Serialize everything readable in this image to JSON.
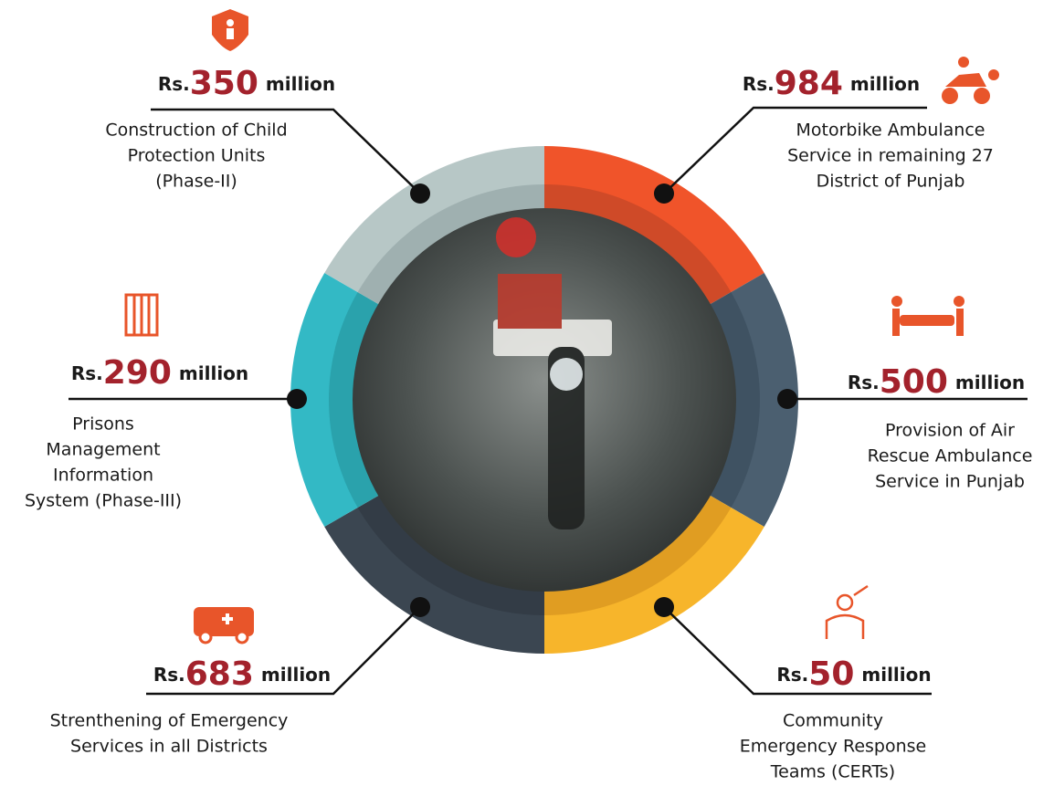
{
  "items": [
    {
      "prefix": "Rs.",
      "amount": 350,
      "unit": "million",
      "description": [
        "Construction of Child",
        "Protection Units",
        "(Phase-II)"
      ]
    },
    {
      "prefix": "Rs.",
      "amount": 984,
      "unit": "million",
      "description": [
        "Motorbike Ambulance",
        "Service in remaining 27",
        "District of Punjab"
      ]
    },
    {
      "prefix": "Rs.",
      "amount": 500,
      "unit": "million",
      "description": [
        "Provision of Air",
        "Rescue Ambulance",
        "Service in Punjab"
      ]
    },
    {
      "prefix": "Rs.",
      "amount": 50,
      "unit": "million",
      "description": [
        "Community",
        "Emergency Response",
        "Teams (CERTs)"
      ]
    },
    {
      "prefix": "Rs.",
      "amount": 683,
      "unit": "million",
      "description": [
        "Strenthening of Emergency",
        "Services in all Districts"
      ]
    },
    {
      "prefix": "Rs.",
      "amount": 290,
      "unit": "million",
      "description": [
        "Prisons",
        "Management",
        "Information",
        "System (Phase-III)"
      ]
    }
  ]
}
